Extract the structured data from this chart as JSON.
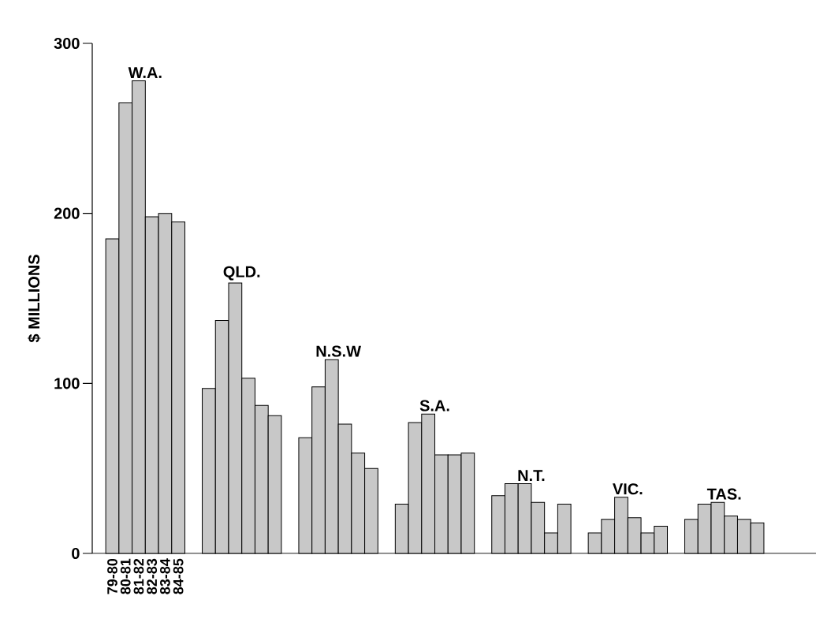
{
  "chart_data": {
    "type": "bar",
    "ylabel": "$ MILLIONS",
    "categories": [
      "W.A.",
      "QLD.",
      "N.S.W",
      "S.A.",
      "N.T.",
      "VIC.",
      "TAS."
    ],
    "series": [
      {
        "name": "79-80",
        "color": "#c8c8c8",
        "values": [
          185,
          97,
          68,
          29,
          34,
          12,
          20
        ]
      },
      {
        "name": "80-81",
        "color": "#c8c8c8",
        "values": [
          265,
          137,
          98,
          77,
          41,
          20,
          29
        ]
      },
      {
        "name": "81-82",
        "color": "#c8c8c8",
        "values": [
          278,
          159,
          114,
          82,
          41,
          33,
          30
        ]
      },
      {
        "name": "82-83",
        "color": "#c8c8c8",
        "values": [
          198,
          103,
          76,
          58,
          30,
          21,
          22
        ]
      },
      {
        "name": "83-84",
        "color": "#c8c8c8",
        "values": [
          200,
          87,
          59,
          58,
          12,
          12,
          20
        ]
      },
      {
        "name": "84-85",
        "color": "#c8c8c8",
        "values": [
          195,
          81,
          50,
          59,
          29,
          16,
          18
        ]
      }
    ],
    "ylim": [
      0,
      300
    ],
    "yticks": [
      0,
      100,
      200,
      300
    ],
    "grid": false,
    "legend": false
  }
}
